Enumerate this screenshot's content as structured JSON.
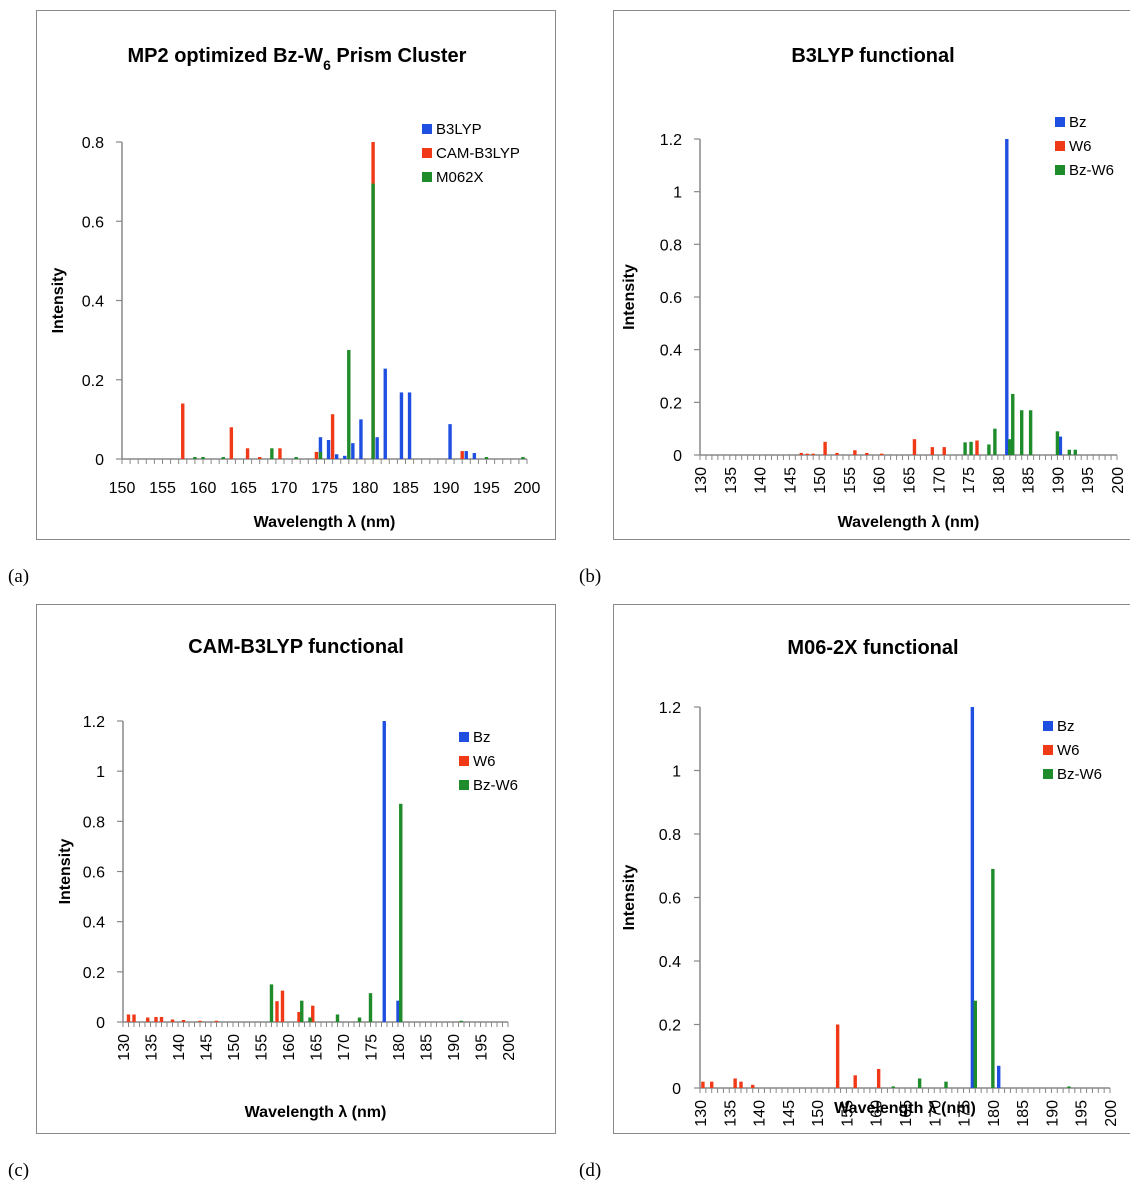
{
  "figure": {
    "panel_labels": [
      "(a)",
      "(b)",
      "(c)",
      "(d)"
    ]
  },
  "colors": {
    "blue": "#1f4fe0",
    "red": "#f03a17",
    "green": "#1e8c2a",
    "axis": "#888888"
  },
  "chart_data": [
    {
      "type": "bar",
      "title": "MP2 optimized Bz-W",
      "title_sub": "6",
      "title_after": " Prism Cluster",
      "xlabel": "Wavelength λ (nm)",
      "ylabel": "Intensity",
      "xlim": [
        150,
        200
      ],
      "ylim": [
        0,
        0.8
      ],
      "yticks": [
        "0",
        "0.2",
        "0.4",
        "0.6",
        "0.8"
      ],
      "xticks": [
        "150",
        "155",
        "160",
        "165",
        "170",
        "175",
        "180",
        "185",
        "190",
        "195",
        "200"
      ],
      "xtick_rotation": 0,
      "legend": [
        "B3LYP",
        "CAM-B3LYP",
        "M062X"
      ],
      "series": [
        {
          "name": "B3LYP",
          "color": "blue",
          "points": [
            [
              174.5,
              0.055
            ],
            [
              175.5,
              0.048
            ],
            [
              176.5,
              0.012
            ],
            [
              177.5,
              0.008
            ],
            [
              178.5,
              0.04
            ],
            [
              179.5,
              0.1
            ],
            [
              181.5,
              0.055
            ],
            [
              182.5,
              0.228
            ],
            [
              184.5,
              0.168
            ],
            [
              185.5,
              0.168
            ],
            [
              190.5,
              0.088
            ],
            [
              192.5,
              0.02
            ],
            [
              193.5,
              0.015
            ]
          ]
        },
        {
          "name": "CAM-B3LYP",
          "color": "red",
          "points": [
            [
              157.5,
              0.14
            ],
            [
              163.5,
              0.08
            ],
            [
              165.5,
              0.027
            ],
            [
              167.0,
              0.005
            ],
            [
              169.5,
              0.027
            ],
            [
              174.0,
              0.018
            ],
            [
              176.0,
              0.113
            ],
            [
              181.0,
              0.81
            ],
            [
              192.0,
              0.02
            ]
          ]
        },
        {
          "name": "M062X",
          "color": "green",
          "points": [
            [
              159.0,
              0.005
            ],
            [
              160.0,
              0.005
            ],
            [
              162.5,
              0.005
            ],
            [
              168.5,
              0.027
            ],
            [
              171.5,
              0.005
            ],
            [
              174.5,
              0.018
            ],
            [
              178.0,
              0.275
            ],
            [
              181.0,
              0.695
            ],
            [
              195.0,
              0.005
            ],
            [
              199.5,
              0.005
            ]
          ]
        }
      ]
    },
    {
      "type": "bar",
      "title": "B3LYP functional",
      "xlabel": "Wavelength λ (nm)",
      "ylabel": "Intensity",
      "xlim": [
        130,
        200
      ],
      "ylim": [
        0,
        1.2
      ],
      "yticks": [
        "0",
        "0.2",
        "0.4",
        "0.6",
        "0.8",
        "1",
        "1.2"
      ],
      "xticks": [
        "130",
        "135",
        "140",
        "145",
        "150",
        "155",
        "160",
        "165",
        "170",
        "175",
        "180",
        "185",
        "190",
        "195",
        "200"
      ],
      "xtick_rotation": -90,
      "legend": [
        "Bz",
        "W6",
        "Bz-W6"
      ],
      "series": [
        {
          "name": "Bz",
          "color": "blue",
          "points": [
            [
              181.5,
              1.2
            ],
            [
              190.5,
              0.07
            ]
          ]
        },
        {
          "name": "W6",
          "color": "red",
          "points": [
            [
              147.0,
              0.008
            ],
            [
              148.0,
              0.005
            ],
            [
              149.0,
              0.005
            ],
            [
              151.0,
              0.05
            ],
            [
              153.0,
              0.008
            ],
            [
              156.0,
              0.018
            ],
            [
              158.0,
              0.008
            ],
            [
              160.5,
              0.005
            ],
            [
              166.0,
              0.06
            ],
            [
              169.0,
              0.03
            ],
            [
              171.0,
              0.03
            ],
            [
              176.5,
              0.055
            ]
          ]
        },
        {
          "name": "Bz-W6",
          "color": "green",
          "points": [
            [
              174.5,
              0.048
            ],
            [
              175.5,
              0.05
            ],
            [
              178.5,
              0.04
            ],
            [
              179.5,
              0.1
            ],
            [
              182.0,
              0.06
            ],
            [
              182.5,
              0.232
            ],
            [
              184.0,
              0.17
            ],
            [
              185.5,
              0.17
            ],
            [
              190.0,
              0.09
            ],
            [
              192.0,
              0.02
            ],
            [
              193.0,
              0.02
            ]
          ]
        }
      ]
    },
    {
      "type": "bar",
      "title": "CAM-B3LYP functional",
      "xlabel": "Wavelength λ (nm)",
      "ylabel": "Intensity",
      "xlim": [
        130,
        200
      ],
      "ylim": [
        0,
        1.2
      ],
      "yticks": [
        "0",
        "0.2",
        "0.4",
        "0.6",
        "0.8",
        "1",
        "1.2"
      ],
      "xticks": [
        "130",
        "135",
        "140",
        "145",
        "150",
        "155",
        "160",
        "165",
        "170",
        "175",
        "180",
        "185",
        "190",
        "195",
        "200"
      ],
      "xtick_rotation": -90,
      "legend": [
        "Bz",
        "W6",
        "Bz-W6"
      ],
      "series": [
        {
          "name": "Bz",
          "color": "blue",
          "points": [
            [
              177.5,
              1.2
            ],
            [
              180.0,
              0.085
            ]
          ]
        },
        {
          "name": "W6",
          "color": "red",
          "points": [
            [
              131.0,
              0.03
            ],
            [
              132.0,
              0.03
            ],
            [
              134.5,
              0.018
            ],
            [
              136.0,
              0.02
            ],
            [
              137.0,
              0.02
            ],
            [
              139.0,
              0.01
            ],
            [
              141.0,
              0.008
            ],
            [
              144.0,
              0.005
            ],
            [
              147.0,
              0.005
            ],
            [
              158.0,
              0.083
            ],
            [
              159.0,
              0.125
            ],
            [
              162.0,
              0.04
            ],
            [
              164.5,
              0.065
            ]
          ]
        },
        {
          "name": "Bz-W6",
          "color": "green",
          "points": [
            [
              157.0,
              0.15
            ],
            [
              162.5,
              0.085
            ],
            [
              164.0,
              0.018
            ],
            [
              169.0,
              0.03
            ],
            [
              173.0,
              0.018
            ],
            [
              175.0,
              0.115
            ],
            [
              180.5,
              0.87
            ],
            [
              191.5,
              0.005
            ]
          ]
        }
      ]
    },
    {
      "type": "bar",
      "title": "M06-2X functional",
      "xlabel": "Wavelength λ (nm)",
      "ylabel": "Intensity",
      "xlim": [
        130,
        200
      ],
      "ylim": [
        0,
        1.2
      ],
      "yticks": [
        "0",
        "0.2",
        "0.4",
        "0.6",
        "0.8",
        "1",
        "1.2"
      ],
      "xticks": [
        "130",
        "135",
        "140",
        "145",
        "150",
        "155",
        "160",
        "165",
        "170",
        "175",
        "180",
        "185",
        "190",
        "195",
        "200"
      ],
      "xtick_rotation": -90,
      "legend": [
        "Bz",
        "W6",
        "Bz-W6"
      ],
      "series": [
        {
          "name": "Bz",
          "color": "blue",
          "points": [
            [
              176.5,
              1.2
            ],
            [
              181.0,
              0.07
            ]
          ]
        },
        {
          "name": "W6",
          "color": "red",
          "points": [
            [
              130.5,
              0.02
            ],
            [
              132.0,
              0.02
            ],
            [
              136.0,
              0.03
            ],
            [
              137.0,
              0.02
            ],
            [
              139.0,
              0.01
            ],
            [
              153.5,
              0.2
            ],
            [
              156.5,
              0.04
            ],
            [
              160.5,
              0.06
            ]
          ]
        },
        {
          "name": "Bz-W6",
          "color": "green",
          "points": [
            [
              163.0,
              0.005
            ],
            [
              167.5,
              0.03
            ],
            [
              172.0,
              0.02
            ],
            [
              177.0,
              0.275
            ],
            [
              180.0,
              0.69
            ],
            [
              193.0,
              0.005
            ]
          ]
        }
      ]
    }
  ]
}
